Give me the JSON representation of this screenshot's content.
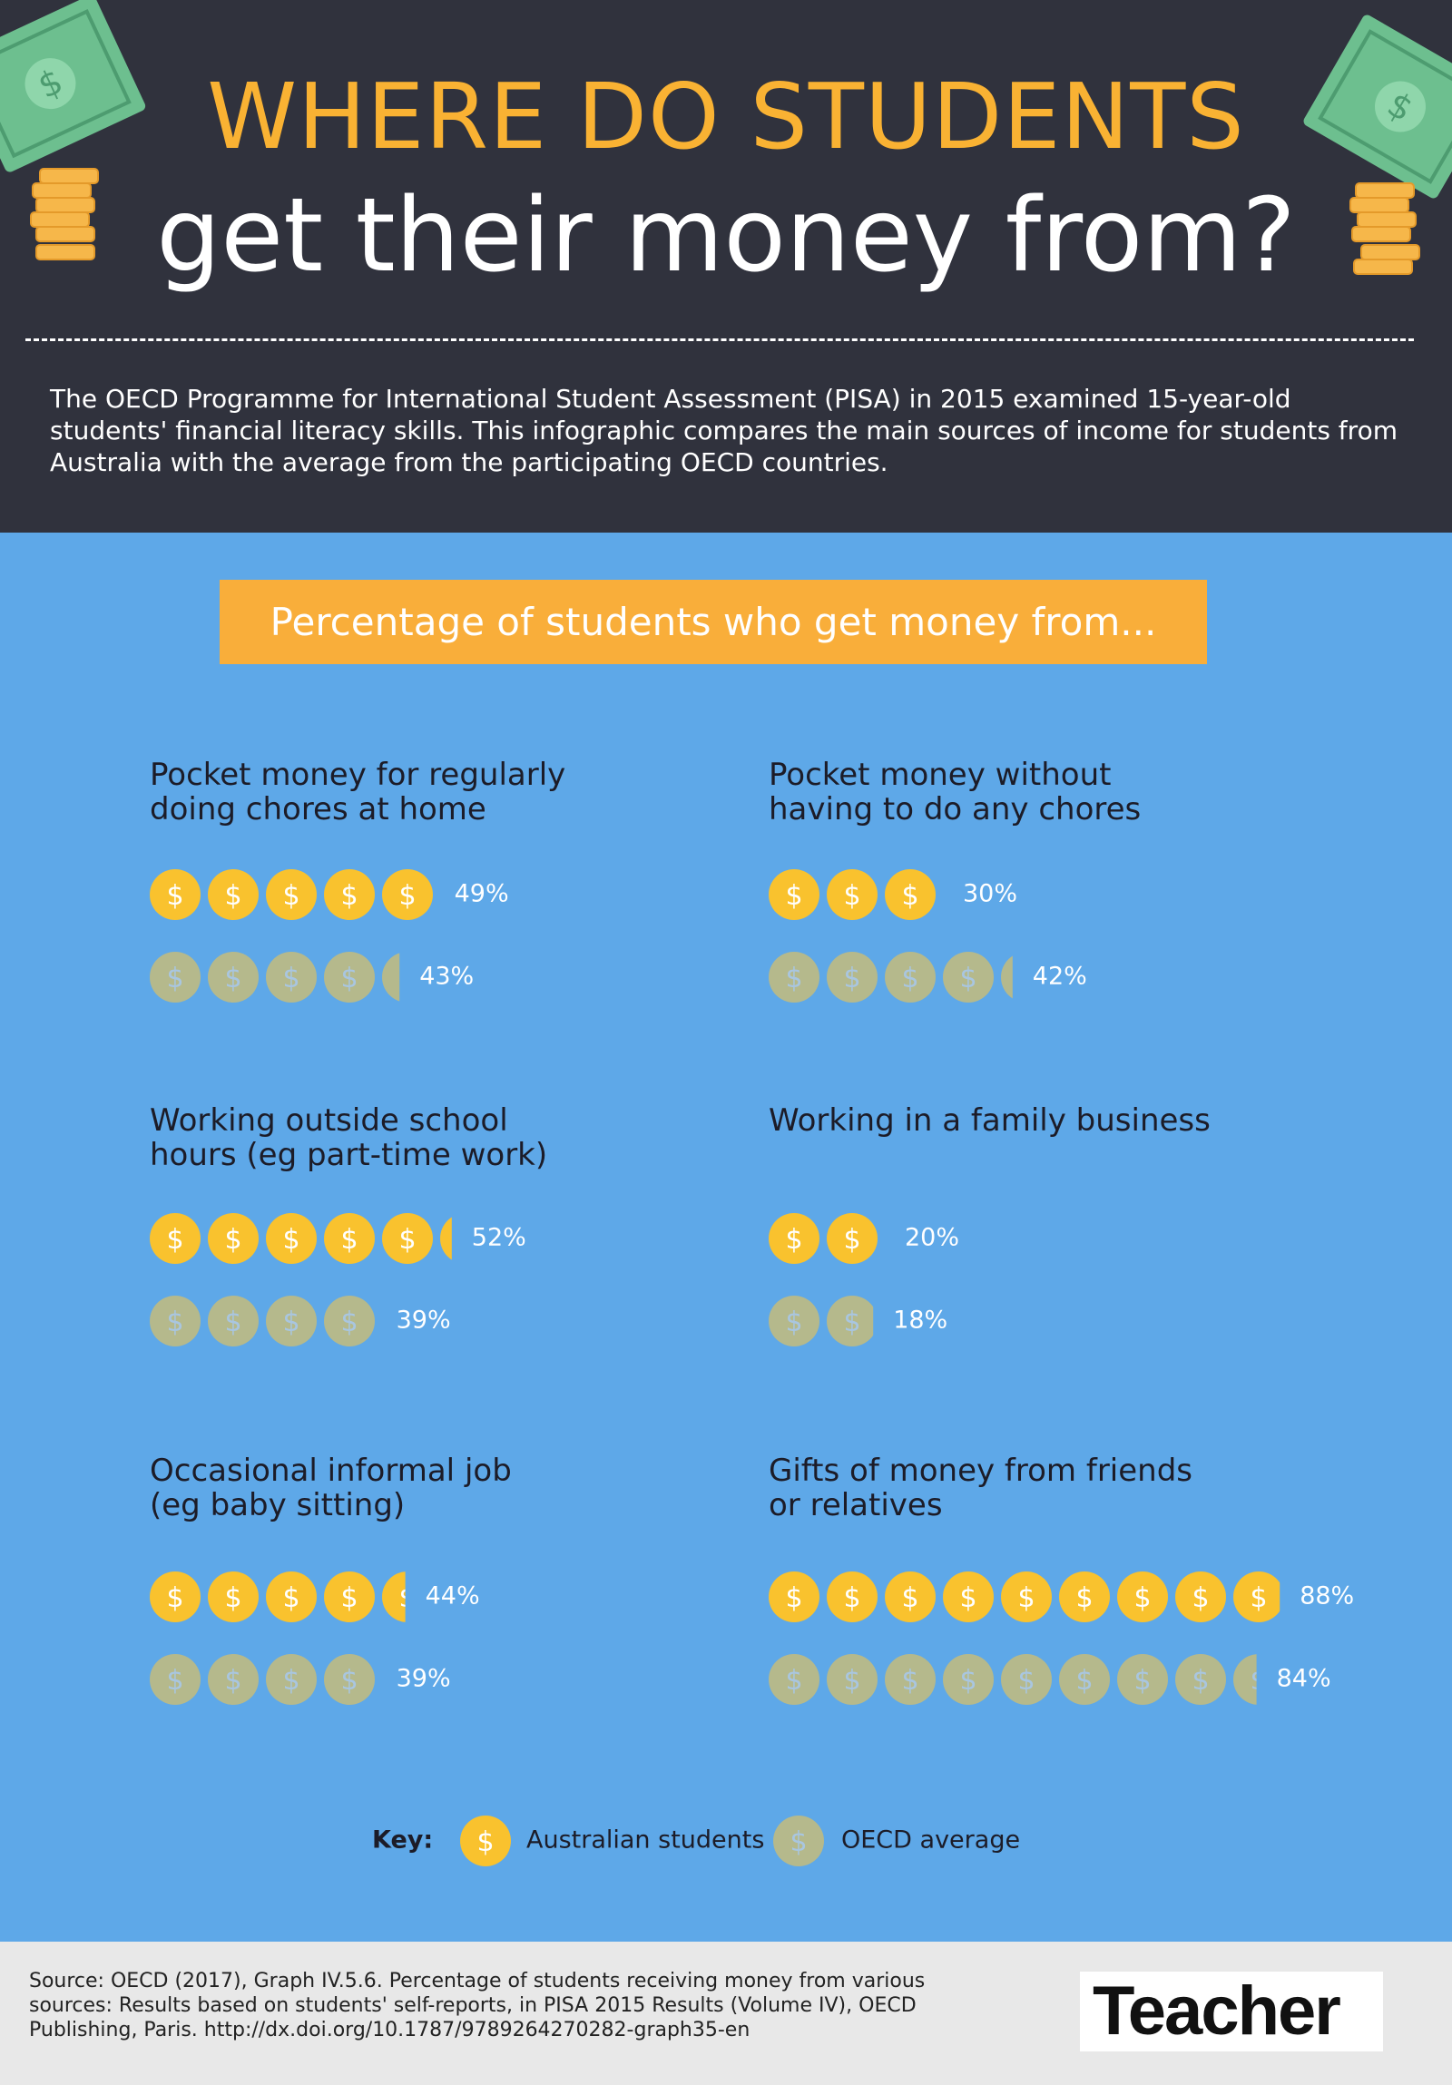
{
  "header": {
    "title_line1": "WHERE DO STUDENTS",
    "title_line2": "get their money from?",
    "intro": "The OECD Programme for International Student Assessment (PISA) in 2015 examined 15-year-old students' financial literacy skills. This infographic compares the main sources of income for students from Australia with the average from the participating OECD countries."
  },
  "chart_data": {
    "type": "pictogram",
    "title": "Percentage of students who get money from...",
    "categories": [
      "Pocket money for regularly doing chores at home",
      "Pocket money without having to do any chores",
      "Working outside school hours (eg part-time work)",
      "Working in a family business",
      "Occasional informal job (eg baby sitting)",
      "Gifts of money from friends or relatives"
    ],
    "icon_label": "$",
    "series": [
      {
        "name": "Australian students",
        "color": "#f9c22e",
        "values": [
          49,
          30,
          52,
          20,
          44,
          88
        ],
        "value_labels": [
          "49%",
          "30%",
          "52%",
          "20%",
          "44%",
          "88%"
        ]
      },
      {
        "name": "OECD average",
        "color": "#b5b98c",
        "values": [
          43,
          42,
          39,
          18,
          39,
          84
        ],
        "value_labels": [
          "43%",
          "42%",
          "39%",
          "18%",
          "39%",
          "84%"
        ]
      }
    ],
    "legend_title": "Key:"
  },
  "footer": {
    "source": "Source: OECD (2017), Graph IV.5.6. Percentage of students receiving money from various sources: Results based on students' self-reports, in PISA 2015 Results (Volume IV), OECD Publishing, Paris. http://dx.doi.org/10.1787/9789264270282-graph35-en",
    "logo": "Teacher"
  }
}
